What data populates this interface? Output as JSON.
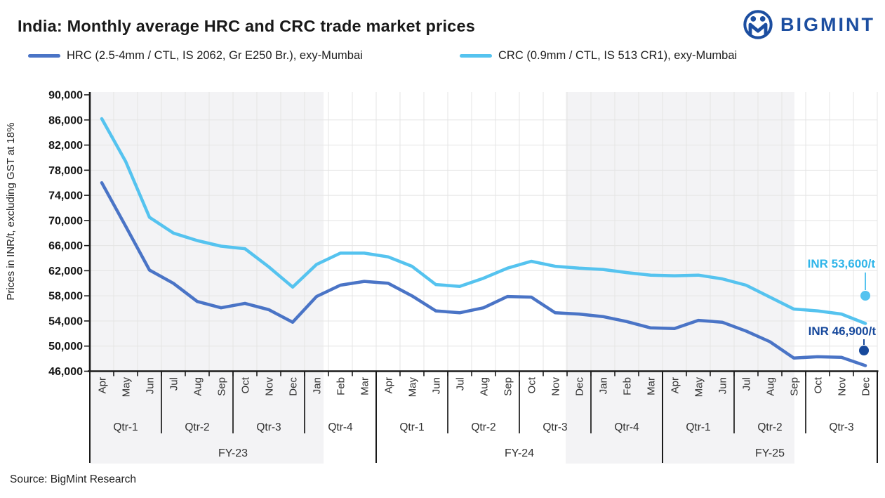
{
  "title": "India: Monthly average HRC and CRC trade market prices",
  "logo": {
    "text": "BIGMINT"
  },
  "source": "Source: BigMint Research",
  "colors": {
    "hrc_line": "#4a74c6",
    "crc_line": "#55c3ef",
    "hrc_annotation": "#17499c",
    "crc_annotation": "#2fb5e9",
    "logo_navy": "#1c4ea0",
    "band_gray": "#f3f3f5",
    "gridline": "#e4e4e4",
    "axis": "#1a1a1a"
  },
  "chart_data": {
    "type": "line",
    "ylabel": "Prices in INR/t, excluding GST at 18%",
    "ylim": [
      46000,
      90000
    ],
    "y_ticks": [
      90000,
      86000,
      82000,
      78000,
      74000,
      70000,
      66000,
      62000,
      58000,
      54000,
      50000,
      46000
    ],
    "grid": true,
    "legend_position": "top-left",
    "categories": [
      "Apr",
      "May",
      "Jun",
      "Jul",
      "Aug",
      "Sep",
      "Oct",
      "Nov",
      "Dec",
      "Jan",
      "Feb",
      "Mar",
      "Apr",
      "May",
      "Jun",
      "Jul",
      "Aug",
      "Sep",
      "Oct",
      "Nov",
      "Dec",
      "Jan",
      "Feb",
      "Mar",
      "Apr",
      "May",
      "Jun",
      "Jul",
      "Aug",
      "Sep",
      "Oct",
      "Nov",
      "Dec"
    ],
    "fiscal_years": [
      {
        "label": "FY-23",
        "quarters": [
          {
            "label": "Qtr-1",
            "months": [
              "Apr",
              "May",
              "Jun"
            ]
          },
          {
            "label": "Qtr-2",
            "months": [
              "Jul",
              "Aug",
              "Sep"
            ]
          },
          {
            "label": "Qtr-3",
            "months": [
              "Oct",
              "Nov",
              "Dec"
            ]
          },
          {
            "label": "Qtr-4",
            "months": [
              "Jan",
              "Feb",
              "Mar"
            ]
          }
        ]
      },
      {
        "label": "FY-24",
        "quarters": [
          {
            "label": "Qtr-1",
            "months": [
              "Apr",
              "May",
              "Jun"
            ]
          },
          {
            "label": "Qtr-2",
            "months": [
              "Jul",
              "Aug",
              "Sep"
            ]
          },
          {
            "label": "Qtr-3",
            "months": [
              "Oct",
              "Nov",
              "Dec"
            ]
          },
          {
            "label": "Qtr-4",
            "months": [
              "Jan",
              "Feb",
              "Mar"
            ]
          }
        ]
      },
      {
        "label": "FY-25",
        "quarters": [
          {
            "label": "Qtr-1",
            "months": [
              "Apr",
              "May",
              "Jun"
            ]
          },
          {
            "label": "Qtr-2",
            "months": [
              "Jul",
              "Aug",
              "Sep"
            ]
          },
          {
            "label": "Qtr-3",
            "months": [
              "Oct",
              "Nov",
              "Dec"
            ]
          }
        ]
      }
    ],
    "series": [
      {
        "name": "HRC (2.5-4mm / CTL, IS 2062, Gr E250 Br.), exy-Mumbai",
        "color": "#4a74c6",
        "values": [
          76000,
          69100,
          62100,
          60000,
          57100,
          56100,
          56800,
          55800,
          53800,
          57900,
          59700,
          60300,
          60000,
          58000,
          55600,
          55300,
          56100,
          57900,
          57800,
          55300,
          55100,
          54700,
          53900,
          52900,
          52800,
          54100,
          53800,
          52400,
          50700,
          48100,
          48300,
          48200,
          46900
        ]
      },
      {
        "name": "CRC (0.9mm / CTL, IS 513 CR1), exy-Mumbai",
        "color": "#55c3ef",
        "values": [
          86200,
          79400,
          70500,
          68000,
          66800,
          65900,
          65500,
          62600,
          59400,
          63000,
          64800,
          64800,
          64200,
          62700,
          59800,
          59500,
          60800,
          62400,
          63500,
          62700,
          62400,
          62200,
          61700,
          61300,
          61200,
          61300,
          60700,
          59700,
          57800,
          55900,
          55600,
          55100,
          53600
        ]
      }
    ],
    "annotations": [
      {
        "series": "CRC",
        "text": "INR 53,600/t",
        "value": 53600
      },
      {
        "series": "HRC",
        "text": "INR 46,900/t",
        "value": 46900
      }
    ]
  }
}
